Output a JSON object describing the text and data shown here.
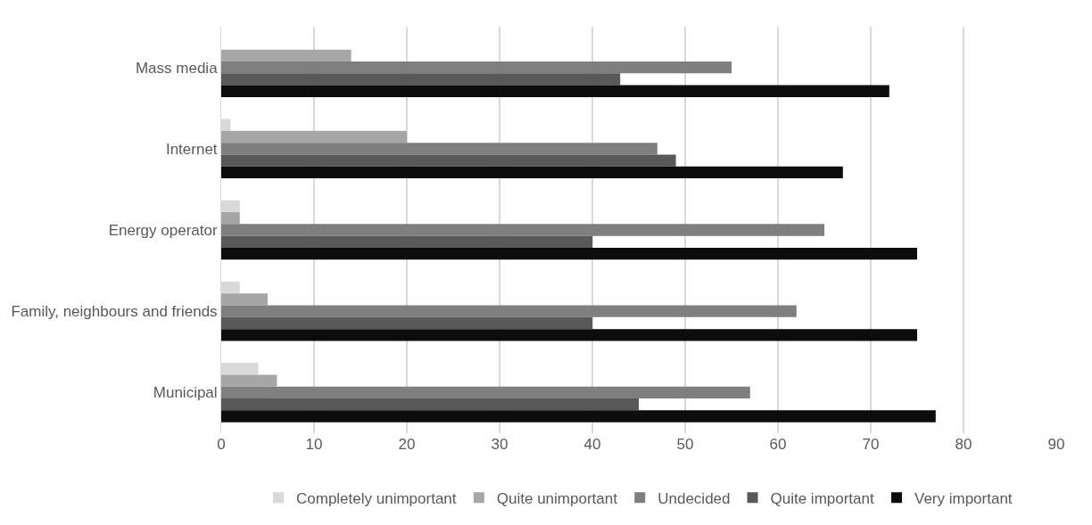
{
  "chart_data": {
    "type": "bar",
    "orientation": "horizontal",
    "categories": [
      "Mass media",
      "Internet",
      "Energy operator",
      "Family, neighbours and friends",
      "Municipal"
    ],
    "series": [
      {
        "name": "Completely unimportant",
        "color": "#d9d9d9",
        "values": [
          0,
          1,
          2,
          2,
          4
        ]
      },
      {
        "name": "Quite unimportant",
        "color": "#a6a6a6",
        "values": [
          14,
          20,
          2,
          5,
          6
        ]
      },
      {
        "name": "Undecided",
        "color": "#7f7f7f",
        "values": [
          55,
          47,
          65,
          62,
          57
        ]
      },
      {
        "name": "Quite important",
        "color": "#595959",
        "values": [
          43,
          49,
          40,
          40,
          45
        ]
      },
      {
        "name": "Very important",
        "color": "#0d0d0d",
        "values": [
          72,
          67,
          75,
          75,
          77
        ]
      }
    ],
    "xlim": [
      0,
      90
    ],
    "xticks": [
      0,
      10,
      20,
      30,
      40,
      50,
      60,
      70,
      80,
      90
    ],
    "grid": "x",
    "legend": "bottom"
  }
}
